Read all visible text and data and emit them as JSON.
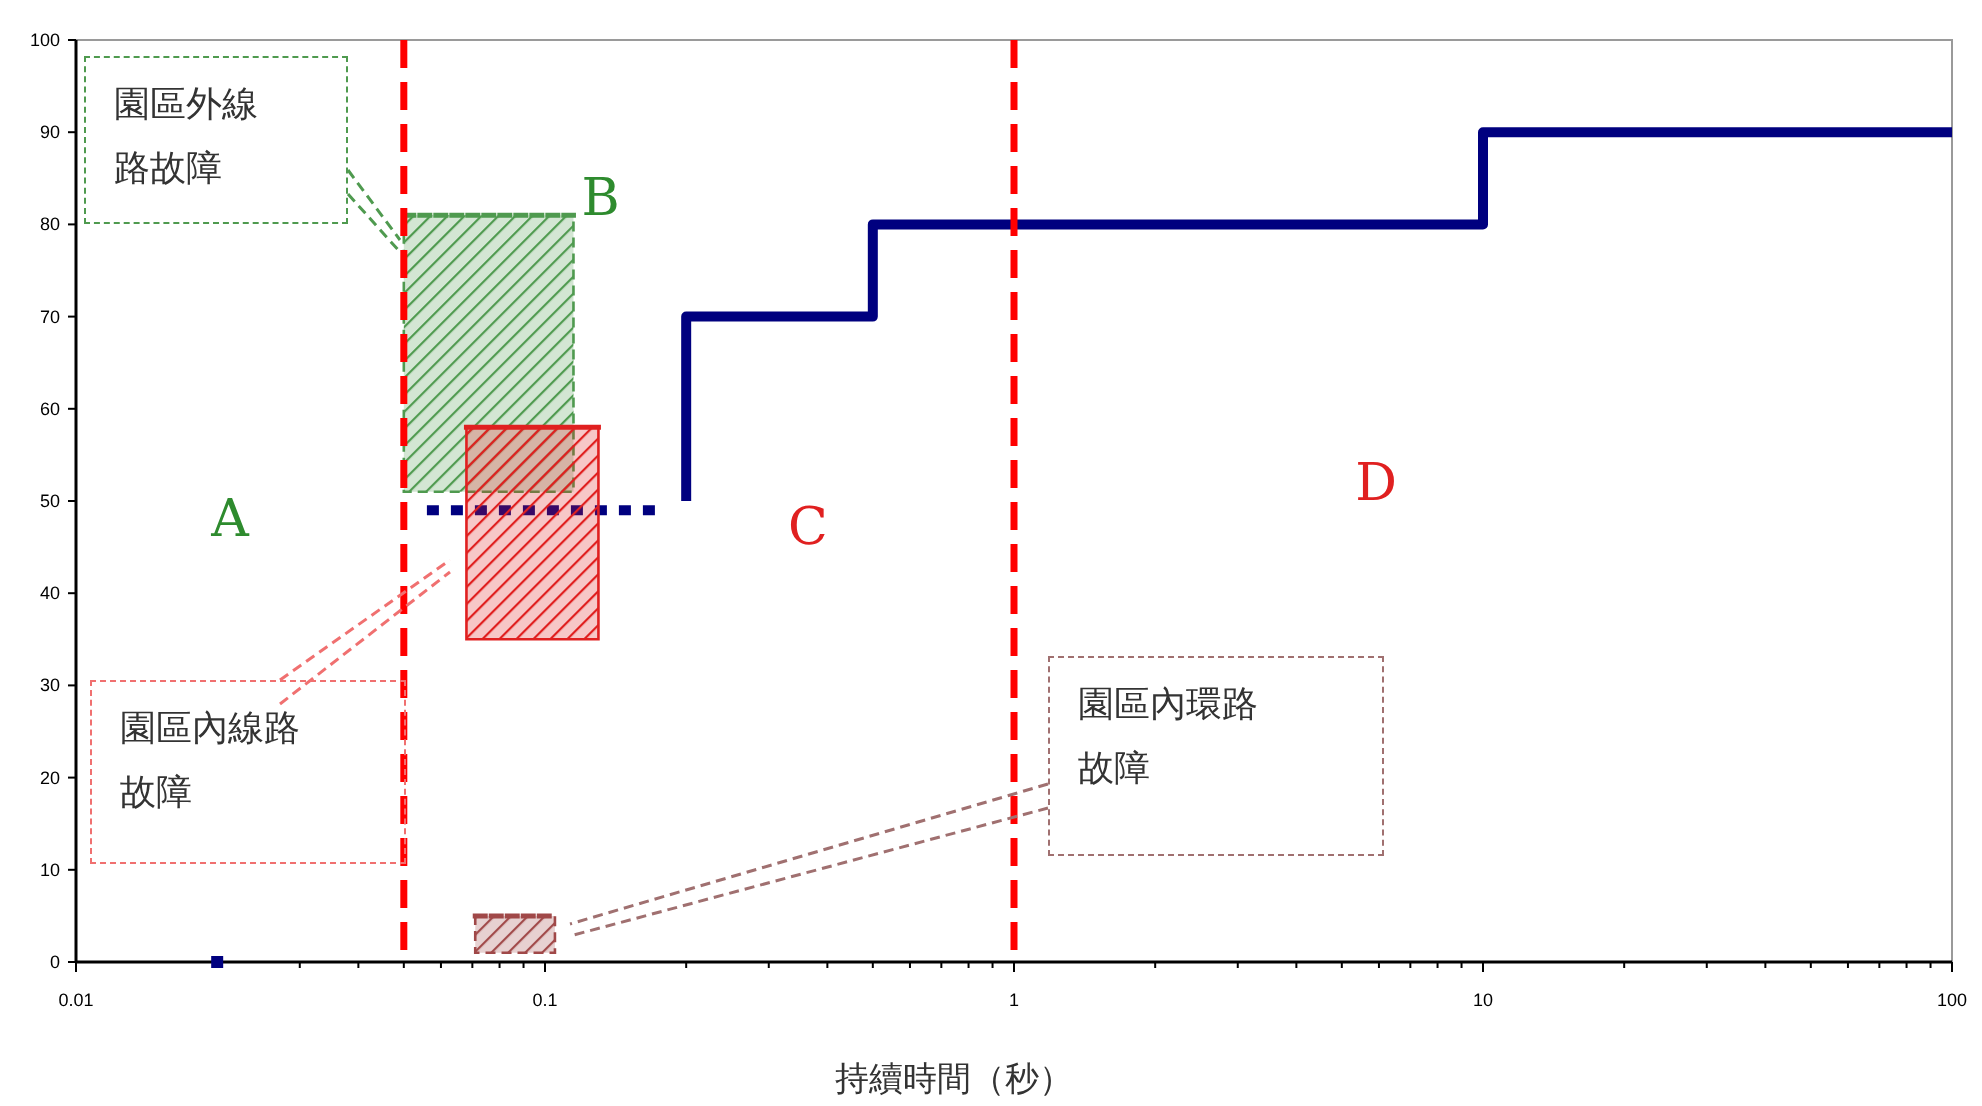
{
  "chart_data": {
    "type": "step",
    "xlabel": "持續時間（秒）",
    "log": "x",
    "xlim": [
      0.01,
      100
    ],
    "xticks": [
      0.01,
      0.1,
      1,
      10,
      100
    ],
    "ylim": [
      0,
      100
    ],
    "yticks": [
      0,
      10,
      20,
      30,
      40,
      50,
      60,
      70,
      80,
      90,
      100
    ],
    "grid": false,
    "series": [
      {
        "color": "#00007f",
        "x": [
          0.2,
          0.2,
          0.5,
          10,
          100
        ],
        "values": [
          50,
          70,
          80,
          90,
          90
        ]
      },
      {
        "type": "line",
        "line_style": "dotted",
        "color": "#00007f",
        "x": [
          0.056,
          0.18
        ],
        "values": [
          49,
          49
        ]
      },
      {
        "type": "scatter",
        "marker": "square",
        "color": "#00007f",
        "x": [
          0.02
        ],
        "values": [
          0
        ]
      },
      {
        "type": "line",
        "line_style": "dashed",
        "color": "#4f9a4f",
        "x": [
          0.05,
          0.115
        ],
        "values": [
          81,
          81
        ],
        "upper": [
          81,
          81
        ],
        "lower": [
          51,
          51
        ]
      },
      {
        "type": "line",
        "line_style": "solid",
        "color": "#e02020",
        "x": [
          0.068,
          0.13
        ],
        "values": [
          58,
          58
        ],
        "upper": [
          58,
          58
        ],
        "lower": [
          35,
          35
        ]
      },
      {
        "type": "line",
        "line_style": "dashed",
        "color": "#a04848",
        "x": [
          0.071,
          0.105
        ],
        "values": [
          5,
          5
        ],
        "upper": [
          5,
          5
        ],
        "lower": [
          1,
          1
        ]
      }
    ],
    "ref_lines": [
      {
        "axis": "x",
        "value": 0.05,
        "color": "#ff0000",
        "line_style": "dashed"
      },
      {
        "axis": "x",
        "value": 1,
        "color": "#ff0000",
        "line_style": "dashed"
      }
    ],
    "annotations": [
      "A",
      {
        "text": "B",
        "x": 0.115,
        "y": 81
      },
      "C",
      "D",
      "園區外線路故障",
      "園區內線路故障",
      "園區內環路故障"
    ]
  }
}
